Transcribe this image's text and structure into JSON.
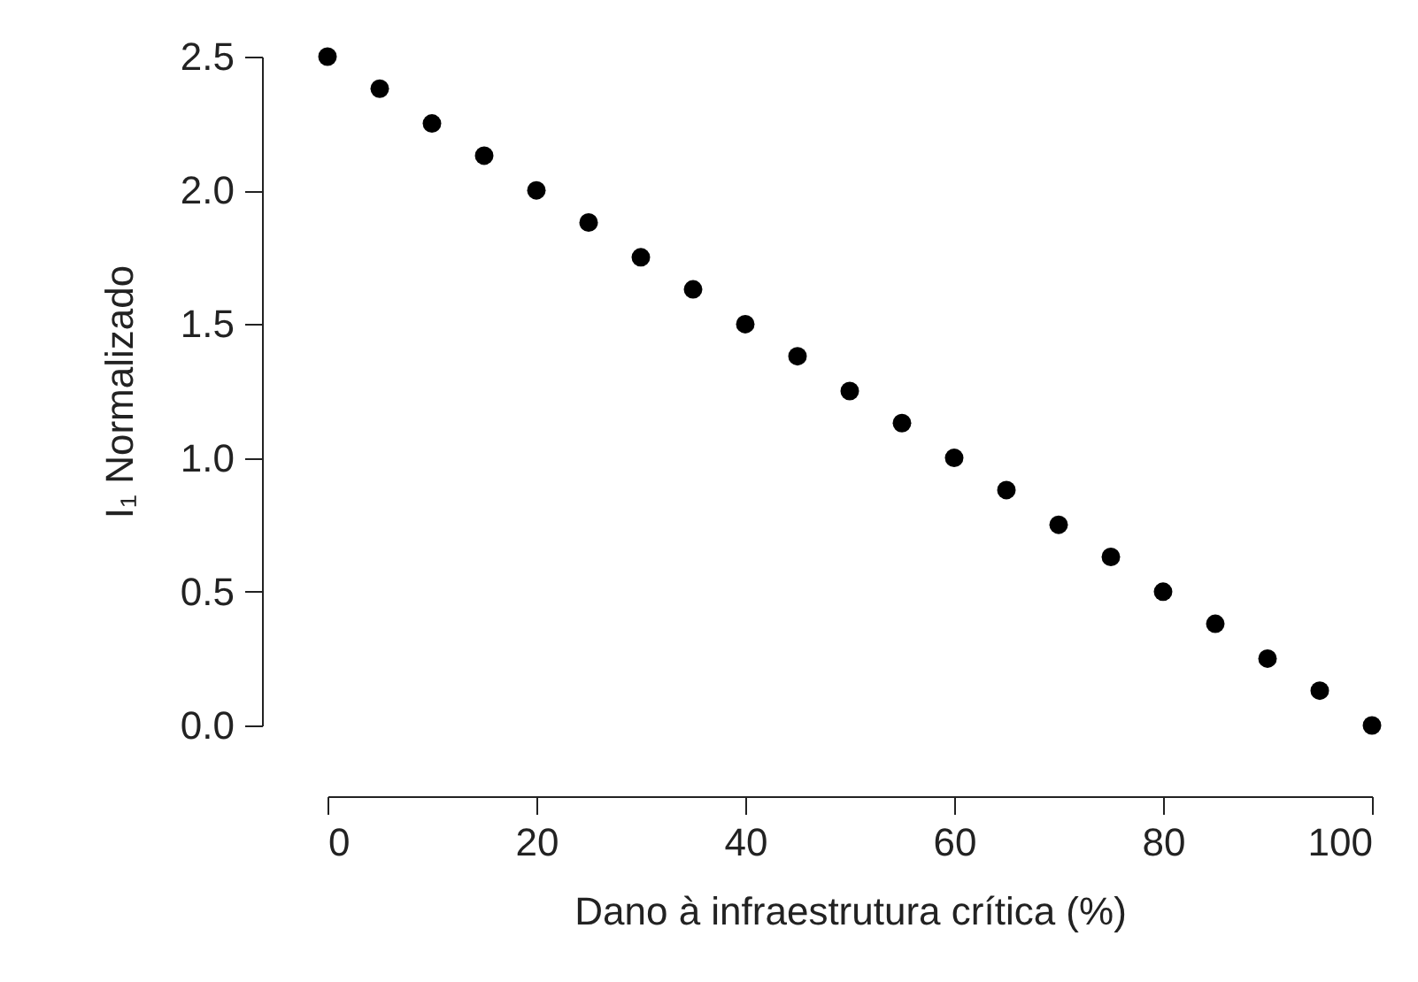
{
  "chart_data": {
    "type": "scatter",
    "xlabel": "Dano à infraestrutura crítica (%)",
    "ylabel": "I₁ Normalizado",
    "x": [
      0,
      5,
      10,
      15,
      20,
      25,
      30,
      35,
      40,
      45,
      50,
      55,
      60,
      65,
      70,
      75,
      80,
      85,
      90,
      95,
      100
    ],
    "series": [
      {
        "color": "#000000",
        "values": [
          2.5,
          2.38,
          2.25,
          2.13,
          2.0,
          1.88,
          1.75,
          1.63,
          1.5,
          1.38,
          1.25,
          1.13,
          1.0,
          0.88,
          0.75,
          0.63,
          0.5,
          0.38,
          0.25,
          0.13,
          0.0
        ]
      }
    ],
    "xlim": [
      0,
      100
    ],
    "ylim": [
      0,
      2.5
    ],
    "xticks": [
      0,
      20,
      40,
      60,
      80,
      100
    ],
    "yticks": [
      {
        "value": 0,
        "label": "0.0"
      },
      0.5,
      {
        "value": 1,
        "label": "1.0"
      },
      1.5,
      {
        "value": 2,
        "label": "2.0"
      },
      2.5
    ],
    "marker": "circle",
    "grid": false,
    "legend": false
  }
}
